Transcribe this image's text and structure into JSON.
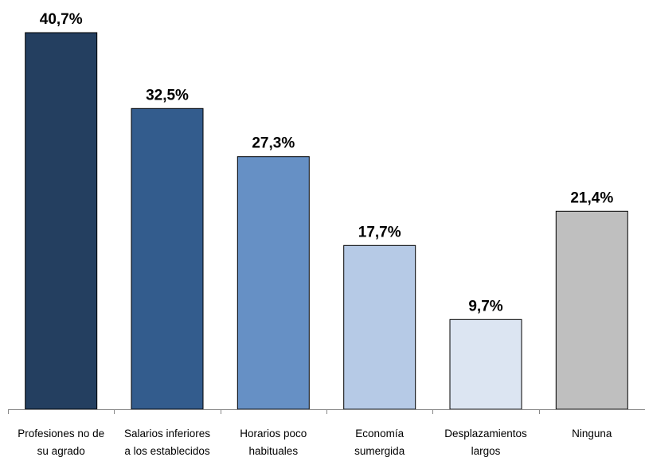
{
  "chart_data": {
    "type": "bar",
    "categories": [
      [
        "Profesiones no de",
        "su agrado"
      ],
      [
        "Salarios inferiores",
        "a los establecidos"
      ],
      [
        "Horarios poco",
        "habituales"
      ],
      [
        "Economía",
        "sumergida"
      ],
      [
        "Desplazamientos",
        "largos"
      ],
      [
        "Ninguna"
      ]
    ],
    "values": [
      40.7,
      32.5,
      27.3,
      17.7,
      9.7,
      21.4
    ],
    "value_labels": [
      "40,7%",
      "32,5%",
      "27,3%",
      "17,7%",
      "9,7%",
      "21,4%"
    ],
    "colors": [
      "#243F60",
      "#335C8D",
      "#6690C5",
      "#B6CAE6",
      "#DCE5F2",
      "#BFBFBF"
    ],
    "ylim": [
      0,
      40.7
    ],
    "grid": false,
    "legend": "none"
  }
}
